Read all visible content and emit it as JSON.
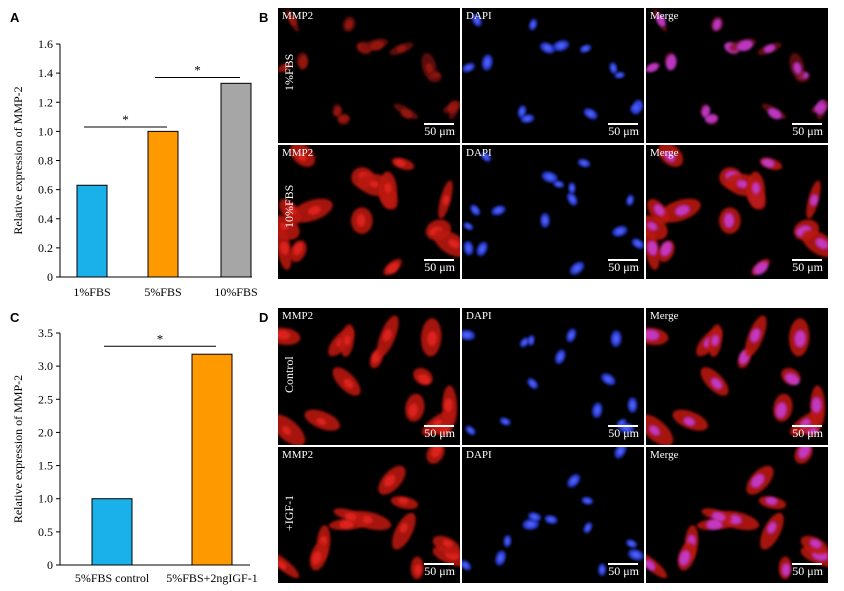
{
  "panels": {
    "A": "A",
    "B": "B",
    "C": "C",
    "D": "D"
  },
  "chart_data": [
    {
      "type": "bar",
      "panel": "A",
      "categories": [
        "1%FBS",
        "5%FBS",
        "10%FBS"
      ],
      "values": [
        0.63,
        1.0,
        1.33
      ],
      "colors": [
        "#1ab0ea",
        "#ff9900",
        "#a6a6a6"
      ],
      "ylabel": "Relative expression of MMP-2",
      "ylim": [
        0,
        1.6
      ],
      "yticks": [
        "0",
        "0.2",
        "0.4",
        "0.6",
        "0.8",
        "1.0",
        "1.2",
        "1.4",
        "1.6"
      ],
      "annotations": [
        {
          "between": [
            0,
            1
          ],
          "y": 1.03,
          "text": "*"
        },
        {
          "between": [
            1,
            2
          ],
          "y": 1.37,
          "text": "*"
        }
      ]
    },
    {
      "type": "bar",
      "panel": "C",
      "categories": [
        "5%FBS control",
        "5%FBS+2ngIGF-1"
      ],
      "values": [
        1.0,
        3.18
      ],
      "colors": [
        "#1ab0ea",
        "#ff9900"
      ],
      "ylabel": "Relative expression of MMP-2",
      "ylim": [
        0,
        3.5
      ],
      "yticks": [
        "0",
        "0.5",
        "1.0",
        "1.5",
        "2.0",
        "2.5",
        "3.0",
        "3.5"
      ],
      "annotations": [
        {
          "between": [
            0,
            1
          ],
          "y": 3.3,
          "text": "*"
        }
      ]
    }
  ],
  "micrographs": {
    "B": {
      "columns": [
        "MMP2",
        "DAPI",
        "Merge"
      ],
      "rows": [
        {
          "label": "1%FBS",
          "labels": [
            "MMP2",
            "DAPI",
            "Merge"
          ]
        },
        {
          "label": "10%FBS",
          "labels": [
            "MMP2",
            "DAPI",
            "Merge"
          ]
        }
      ],
      "scale": "50 μm"
    },
    "D": {
      "columns": [
        "MMP2",
        "DAPI",
        "Merge"
      ],
      "rows": [
        {
          "label": "Control",
          "labels": [
            "MMP2",
            "DAPI",
            "Merge"
          ]
        },
        {
          "label": "+IGF-1",
          "labels": [
            "MMP2",
            "DAPI",
            "Merge"
          ]
        }
      ],
      "scale": "50 μm"
    }
  }
}
